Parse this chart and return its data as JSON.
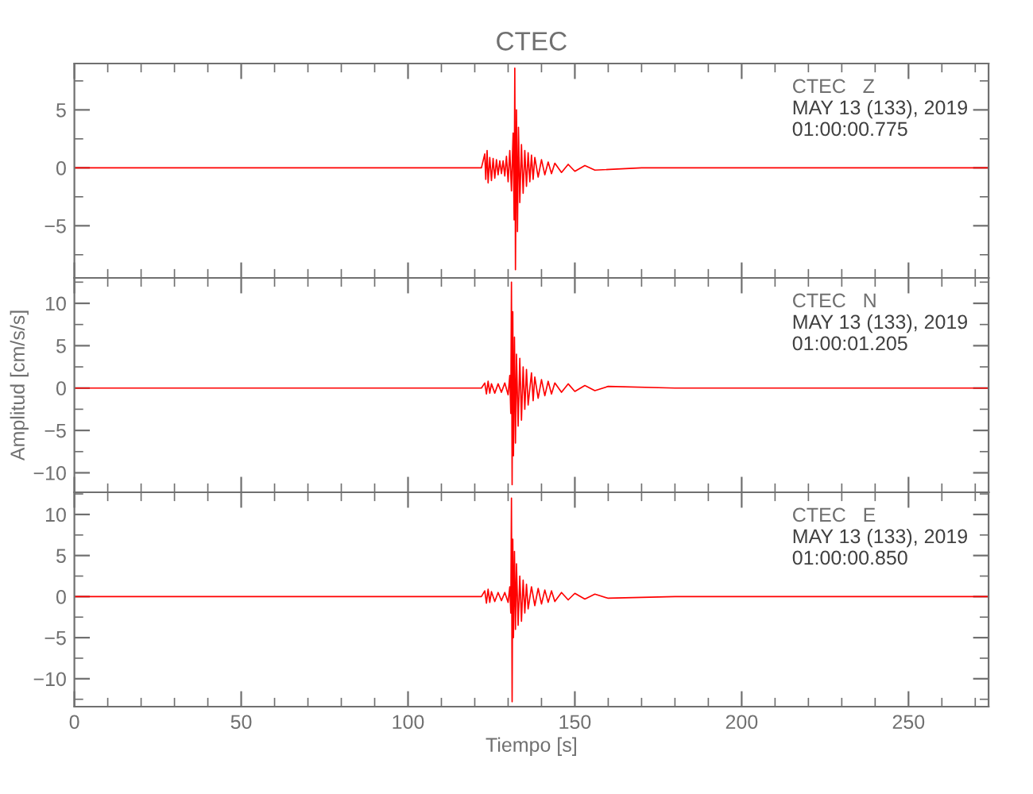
{
  "chart_data": [
    {
      "type": "line",
      "title": "CTEC",
      "annotations": [
        "CTEC   Z",
        "MAY 13 (133), 2019",
        "01:00:00.775"
      ],
      "xlim": [
        0,
        274
      ],
      "xticks": [
        0,
        50,
        100,
        150,
        200,
        250
      ],
      "ylim": [
        -9.5,
        9
      ],
      "yticks": [
        -5,
        0,
        5
      ],
      "tick_labels": "y",
      "grid": false,
      "legend": false,
      "series": [
        {
          "color": "#ff0000",
          "x": [
            0,
            122,
            123,
            123.3,
            123.7,
            124,
            124.5,
            125,
            125.5,
            126,
            126.5,
            127,
            127.5,
            128,
            128.5,
            129,
            129.5,
            130,
            130.5,
            131,
            131.5,
            131.8,
            132,
            132.2,
            132.5,
            132.8,
            133.1,
            133.5,
            134,
            134.5,
            135,
            135.5,
            136,
            136.5,
            137,
            137.5,
            138,
            139,
            140,
            141,
            142,
            143,
            144,
            146,
            148,
            150,
            153,
            156,
            170,
            274
          ],
          "values": [
            0,
            0,
            1.2,
            -1.0,
            1.5,
            -1.3,
            0.9,
            -1.1,
            0.8,
            -0.9,
            0.7,
            -0.6,
            0.6,
            -0.5,
            0.6,
            -0.7,
            1.0,
            -1.2,
            1.5,
            -2.0,
            3.0,
            -4.5,
            8.6,
            -8.8,
            5.0,
            -5.5,
            3.5,
            -3.0,
            2.0,
            -2.2,
            1.5,
            -1.6,
            1.3,
            -1.2,
            1.1,
            -1.0,
            0.9,
            -0.8,
            0.7,
            -0.6,
            0.5,
            -0.5,
            0.4,
            -0.4,
            0.3,
            -0.3,
            0.2,
            -0.2,
            0,
            0
          ]
        }
      ]
    },
    {
      "type": "line",
      "ylabel": "Amplitud [cm/s/s]",
      "annotations": [
        "CTEC   N",
        "MAY 13 (133), 2019",
        "01:00:01.205"
      ],
      "xlim": [
        0,
        274
      ],
      "xticks": [
        0,
        50,
        100,
        150,
        200,
        250
      ],
      "ylim": [
        -12.3,
        13
      ],
      "yticks": [
        -10,
        -5,
        0,
        5,
        10
      ],
      "tick_labels": "y",
      "grid": false,
      "legend": false,
      "series": [
        {
          "color": "#ff0000",
          "x": [
            0,
            122,
            123,
            123.5,
            124,
            124.5,
            125,
            126,
            127,
            128,
            129,
            130,
            130.5,
            130.8,
            131,
            131.2,
            131.4,
            131.6,
            131.9,
            132.2,
            132.5,
            133,
            133.5,
            134,
            134.5,
            135,
            135.5,
            136,
            137,
            137.5,
            138,
            139,
            140,
            141,
            142,
            143,
            144,
            146,
            148,
            150,
            153,
            156,
            160,
            180,
            274
          ],
          "values": [
            0,
            0,
            0.6,
            -0.7,
            0.8,
            -0.6,
            0.5,
            -0.6,
            0.5,
            -0.5,
            0.6,
            -0.8,
            1.5,
            -3,
            12.5,
            -11.4,
            9,
            -8,
            6,
            -6.5,
            4,
            -4.5,
            3.5,
            -3.8,
            2.5,
            -2.5,
            2.2,
            -2.0,
            1.8,
            -1.5,
            1.3,
            -1.2,
            1.0,
            -0.9,
            0.8,
            -0.7,
            0.6,
            -0.5,
            0.5,
            -0.4,
            0.3,
            -0.3,
            0.2,
            0,
            0
          ]
        }
      ]
    },
    {
      "type": "line",
      "xlabel": "Tiempo [s]",
      "annotations": [
        "CTEC   E",
        "MAY 13 (133), 2019",
        "01:00:00.850"
      ],
      "xlim": [
        0,
        274
      ],
      "xticks": [
        0,
        50,
        100,
        150,
        200,
        250
      ],
      "ylim": [
        -13.4,
        12.7
      ],
      "yticks": [
        -10,
        -5,
        0,
        5,
        10
      ],
      "grid": false,
      "legend": false,
      "series": [
        {
          "color": "#ff0000",
          "x": [
            0,
            122,
            123,
            123.5,
            124,
            124.5,
            125,
            126,
            127,
            128,
            129,
            130,
            130.5,
            130.8,
            131,
            131.2,
            131.4,
            131.6,
            131.9,
            132.2,
            132.5,
            133,
            133.5,
            134,
            134.5,
            135,
            135.5,
            136,
            137,
            138,
            139,
            140,
            141,
            142,
            143,
            144,
            146,
            148,
            150,
            153,
            156,
            160,
            180,
            274
          ],
          "values": [
            0,
            0,
            0.7,
            -0.8,
            0.9,
            -0.7,
            0.6,
            -0.6,
            0.5,
            -0.5,
            0.5,
            -0.7,
            1.2,
            -2,
            12.0,
            -12.8,
            7,
            -5,
            5.5,
            -4,
            4,
            -3.5,
            2.5,
            -3,
            2,
            -2,
            1.5,
            -1.5,
            1.2,
            -1.1,
            1.0,
            -0.9,
            0.8,
            -0.7,
            0.7,
            -0.6,
            0.5,
            -0.4,
            0.4,
            -0.3,
            0.3,
            -0.2,
            0,
            0
          ]
        }
      ]
    }
  ]
}
